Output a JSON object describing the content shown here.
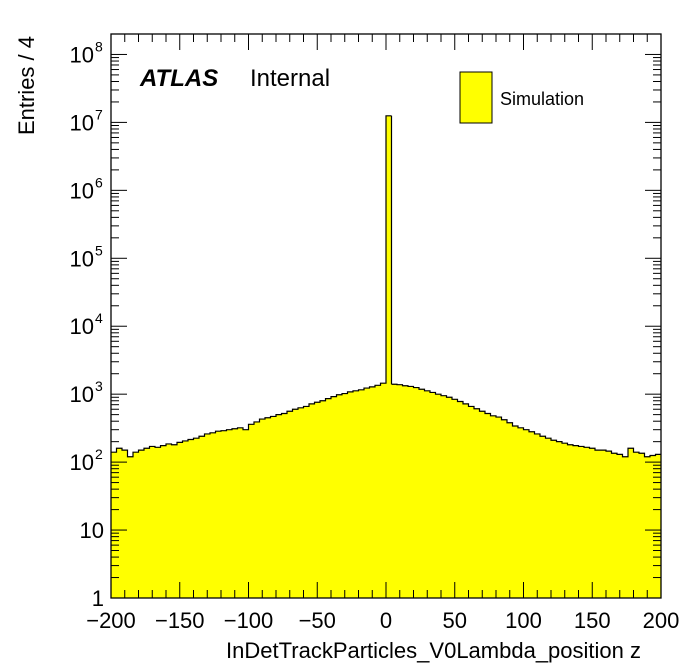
{
  "chart_data": {
    "type": "bar",
    "style": "histogram",
    "log_scale_y": true,
    "xlabel": "InDetTrackParticles_V0Lambda_position z",
    "ylabel": "Entries / 4",
    "xlim": [
      -200,
      200
    ],
    "ylim": [
      1,
      200000000
    ],
    "bin_width": 4,
    "x_ticks": [
      "−200",
      "−150",
      "−100",
      "−50",
      "0",
      "50",
      "100",
      "150",
      "200"
    ],
    "x_tick_values": [
      -200,
      -150,
      -100,
      -50,
      0,
      50,
      100,
      150,
      200
    ],
    "y_ticks": [
      {
        "value": 1,
        "base": "1",
        "exp": ""
      },
      {
        "value": 10,
        "base": "10",
        "exp": ""
      },
      {
        "value": 100,
        "base": "10",
        "exp": "2"
      },
      {
        "value": 1000,
        "base": "10",
        "exp": "3"
      },
      {
        "value": 10000,
        "base": "10",
        "exp": "4"
      },
      {
        "value": 100000,
        "base": "10",
        "exp": "5"
      },
      {
        "value": 1000000,
        "base": "10",
        "exp": "6"
      },
      {
        "value": 10000000,
        "base": "10",
        "exp": "7"
      },
      {
        "value": 100000000,
        "base": "10",
        "exp": "8"
      }
    ],
    "series": [
      {
        "name": "Simulation",
        "color": "#ffff00",
        "edge_color": "#000000",
        "bin_edges_low": [
          -200,
          -196,
          -192,
          -188,
          -184,
          -180,
          -176,
          -172,
          -168,
          -164,
          -160,
          -156,
          -152,
          -148,
          -144,
          -140,
          -136,
          -132,
          -128,
          -124,
          -120,
          -116,
          -112,
          -108,
          -104,
          -100,
          -96,
          -92,
          -88,
          -84,
          -80,
          -76,
          -72,
          -68,
          -64,
          -60,
          -56,
          -52,
          -48,
          -44,
          -40,
          -36,
          -32,
          -28,
          -24,
          -20,
          -16,
          -12,
          -8,
          -4,
          0,
          4,
          8,
          12,
          16,
          20,
          24,
          28,
          32,
          36,
          40,
          44,
          48,
          52,
          56,
          60,
          64,
          68,
          72,
          76,
          80,
          84,
          88,
          92,
          96,
          100,
          104,
          108,
          112,
          116,
          120,
          124,
          128,
          132,
          136,
          140,
          144,
          148,
          152,
          156,
          160,
          164,
          168,
          172,
          176,
          180,
          184,
          188,
          192,
          196
        ],
        "values": [
          140,
          160,
          150,
          120,
          140,
          150,
          160,
          170,
          165,
          175,
          185,
          180,
          195,
          205,
          215,
          225,
          240,
          260,
          270,
          285,
          290,
          300,
          310,
          320,
          300,
          360,
          390,
          430,
          450,
          470,
          500,
          520,
          560,
          600,
          630,
          660,
          720,
          760,
          800,
          860,
          920,
          980,
          1020,
          1080,
          1120,
          1160,
          1230,
          1280,
          1350,
          1450,
          12500000,
          1400,
          1380,
          1330,
          1300,
          1250,
          1180,
          1120,
          1060,
          1000,
          950,
          900,
          840,
          780,
          720,
          660,
          610,
          560,
          520,
          480,
          460,
          420,
          380,
          340,
          320,
          300,
          280,
          260,
          240,
          225,
          210,
          200,
          190,
          180,
          175,
          170,
          165,
          160,
          150,
          150,
          145,
          135,
          130,
          120,
          160,
          140,
          135,
          120,
          125,
          130
        ]
      }
    ],
    "legend": {
      "position": "top-right",
      "entries": [
        "Simulation"
      ]
    },
    "annotation": {
      "atlas": "ATLAS",
      "label": "Internal"
    },
    "grid": false
  }
}
